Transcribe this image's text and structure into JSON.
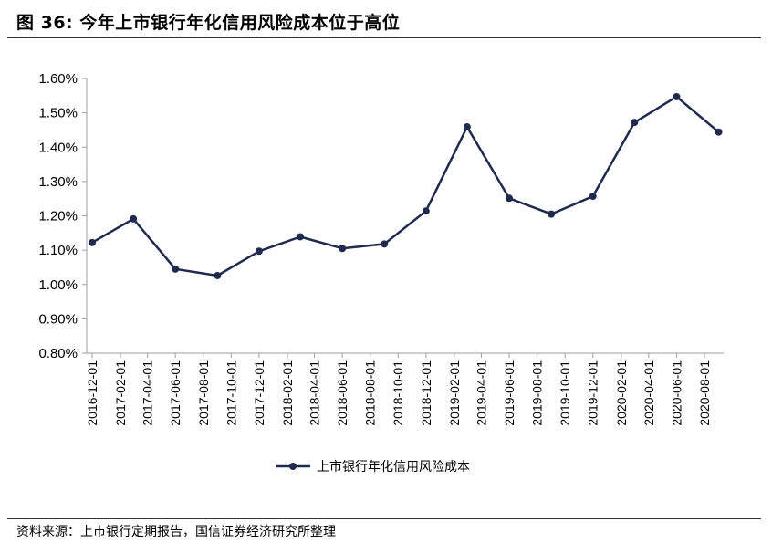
{
  "figure": {
    "title": "图 36:  今年上市银行年化信用风险成本位于高位",
    "source": "资料来源：上市银行定期报告，国信证券经济研究所整理"
  },
  "colors": {
    "series": "#1F2A4E",
    "axis": "#9E9E9E",
    "rule": "#333333"
  },
  "chart_data": {
    "type": "line",
    "title": "",
    "xlabel": "",
    "ylabel": "",
    "categories": [
      "2016-12-01",
      "2017-02-01",
      "2017-04-01",
      "2017-06-01",
      "2017-08-01",
      "2017-10-01",
      "2017-12-01",
      "2018-02-01",
      "2018-04-01",
      "2018-06-01",
      "2018-08-01",
      "2018-10-01",
      "2018-12-01",
      "2019-02-01",
      "2019-04-01",
      "2019-06-01",
      "2019-08-01",
      "2019-10-01",
      "2019-12-01",
      "2020-02-01",
      "2020-04-01",
      "2020-06-01",
      "2020-08-01"
    ],
    "ylim": [
      0.008,
      0.016
    ],
    "yticks": [
      0.008,
      0.009,
      0.01,
      0.011,
      0.012,
      0.013,
      0.014,
      0.015,
      0.016
    ],
    "ytick_labels": [
      "0.80%",
      "0.90%",
      "1.00%",
      "1.10%",
      "1.20%",
      "1.30%",
      "1.40%",
      "1.50%",
      "1.60%"
    ],
    "series": [
      {
        "name": "上市银行年化信用风险成本",
        "points": [
          {
            "x": "2016-12-01",
            "y": 0.01122
          },
          {
            "x": "2017-03-01",
            "y": 0.01191
          },
          {
            "x": "2017-06-01",
            "y": 0.01045
          },
          {
            "x": "2017-09-01",
            "y": 0.01026
          },
          {
            "x": "2017-12-01",
            "y": 0.01097
          },
          {
            "x": "2018-03-01",
            "y": 0.01139
          },
          {
            "x": "2018-06-01",
            "y": 0.01105
          },
          {
            "x": "2018-09-01",
            "y": 0.01118
          },
          {
            "x": "2018-12-01",
            "y": 0.01214
          },
          {
            "x": "2019-03-01",
            "y": 0.01459
          },
          {
            "x": "2019-06-01",
            "y": 0.01251
          },
          {
            "x": "2019-09-01",
            "y": 0.01205
          },
          {
            "x": "2019-12-01",
            "y": 0.01257
          },
          {
            "x": "2020-03-01",
            "y": 0.01472
          },
          {
            "x": "2020-06-01",
            "y": 0.01547
          },
          {
            "x": "2020-09-01",
            "y": 0.01444
          }
        ]
      }
    ],
    "grid": false,
    "legend": {
      "position": "bottom-center"
    }
  }
}
